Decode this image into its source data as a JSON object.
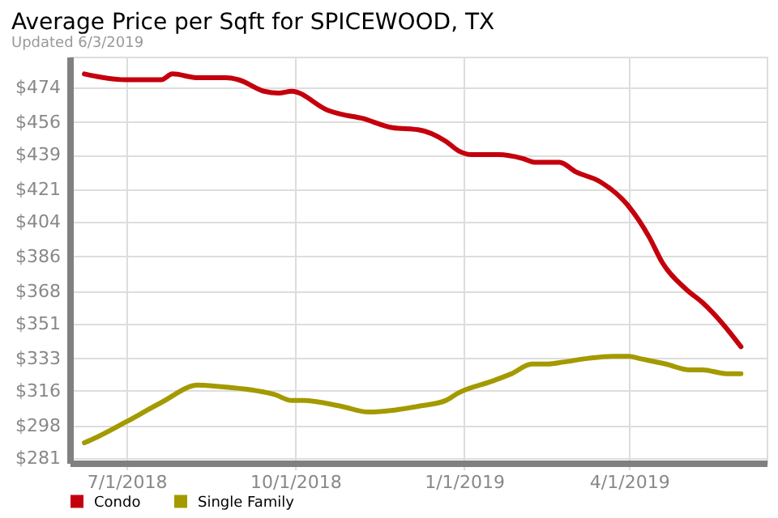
{
  "chart_data": {
    "type": "line",
    "title": "Average Price per Sqft for SPICEWOOD, TX",
    "subtitle": "Updated 6/3/2019",
    "xlim": [
      "2018-05-31",
      "2019-06-15"
    ],
    "xticks": [
      {
        "value": "2018-07-01",
        "label": "7/1/2018"
      },
      {
        "value": "2018-10-01",
        "label": "10/1/2018"
      },
      {
        "value": "2019-01-01",
        "label": "1/1/2019"
      },
      {
        "value": "2019-04-01",
        "label": "4/1/2019"
      }
    ],
    "ylim": [
      278.5,
      490
    ],
    "yticks": [
      {
        "value": 281,
        "label": "$281"
      },
      {
        "value": 298,
        "label": "$298"
      },
      {
        "value": 316,
        "label": "$316"
      },
      {
        "value": 333,
        "label": "$333"
      },
      {
        "value": 351,
        "label": "$351"
      },
      {
        "value": 368,
        "label": "$368"
      },
      {
        "value": 386,
        "label": "$386"
      },
      {
        "value": 404,
        "label": "$404"
      },
      {
        "value": 421,
        "label": "$421"
      },
      {
        "value": 439,
        "label": "$439"
      },
      {
        "value": 456,
        "label": "$456"
      },
      {
        "value": 474,
        "label": "$474"
      }
    ],
    "grid": true,
    "legend": "bottom",
    "series": [
      {
        "name": "Condo",
        "color": "#c4000c",
        "x": [
          "2018-06-08",
          "2018-06-30",
          "2018-07-20",
          "2018-07-26",
          "2018-08-09",
          "2018-08-24",
          "2018-08-31",
          "2018-09-14",
          "2018-09-22",
          "2018-09-29",
          "2018-10-19",
          "2018-10-26",
          "2018-11-06",
          "2018-11-23",
          "2018-12-07",
          "2018-12-22",
          "2018-12-29",
          "2019-01-05",
          "2019-01-20",
          "2019-02-02",
          "2019-02-09",
          "2019-02-22",
          "2019-03-03",
          "2019-03-16",
          "2019-03-31",
          "2019-04-12",
          "2019-04-19",
          "2019-05-02",
          "2019-05-11",
          "2019-05-22",
          "2019-06-01"
        ],
        "values": [
          481,
          478,
          478,
          481,
          479,
          479,
          478,
          472,
          471,
          472,
          462,
          460,
          458,
          453,
          452,
          446,
          441,
          439,
          439,
          437,
          435,
          435,
          430,
          425,
          413,
          396,
          383,
          369,
          362,
          351,
          339
        ]
      },
      {
        "name": "Single Family",
        "color": "#a39a00",
        "x": [
          "2018-06-08",
          "2018-06-15",
          "2018-07-01",
          "2018-07-20",
          "2018-08-09",
          "2018-08-24",
          "2018-09-20",
          "2018-09-29",
          "2018-10-05",
          "2018-10-26",
          "2018-11-10",
          "2018-11-24",
          "2018-12-07",
          "2018-12-22",
          "2018-12-29",
          "2019-01-16",
          "2019-01-27",
          "2019-02-07",
          "2019-02-16",
          "2019-02-24",
          "2019-03-10",
          "2019-03-23",
          "2019-04-01",
          "2019-04-06",
          "2019-04-21",
          "2019-05-04",
          "2019-05-11",
          "2019-05-24",
          "2019-06-01"
        ],
        "values": [
          289,
          292,
          300,
          310,
          319,
          318,
          314,
          311,
          311,
          308,
          305,
          306,
          308,
          311,
          315,
          321,
          325,
          330,
          330,
          331,
          333,
          334,
          334,
          333,
          330,
          327,
          327,
          325,
          325
        ]
      }
    ]
  }
}
